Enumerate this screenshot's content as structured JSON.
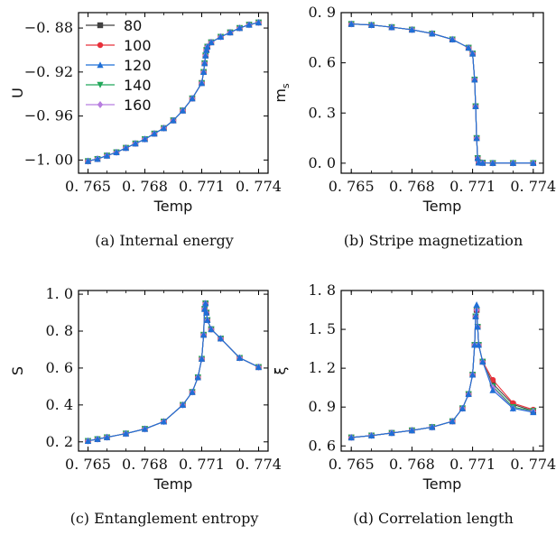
{
  "chart_data": [
    {
      "type": "line",
      "caption": "(a) Internal energy",
      "xlabel": "Temp",
      "ylabel": "U",
      "xlim": [
        0.7645,
        0.7745
      ],
      "ylim": [
        -1.012,
        -0.866
      ],
      "xticks": [
        0.765,
        0.768,
        0.771,
        0.774
      ],
      "xtick_labels": [
        "0. 765",
        "0. 768",
        "0. 771",
        "0. 774"
      ],
      "yticks": [
        -1.0,
        -0.96,
        -0.92,
        -0.88
      ],
      "ytick_labels": [
        "−1. 00",
        "−0. 96",
        "−0. 92",
        "−0. 88"
      ],
      "legend": {
        "placement": "top-left",
        "entries": [
          "80",
          "100",
          "120",
          "140",
          "160"
        ]
      },
      "x": [
        0.765,
        0.7655,
        0.766,
        0.7665,
        0.767,
        0.7675,
        0.768,
        0.7685,
        0.769,
        0.7695,
        0.77,
        0.7705,
        0.771,
        0.7711,
        0.77115,
        0.7712,
        0.77125,
        0.7713,
        0.7715,
        0.772,
        0.7725,
        0.773,
        0.7735,
        0.774
      ],
      "series": [
        {
          "name": "80",
          "values": [
            -1.001,
            -0.999,
            -0.996,
            -0.993,
            -0.989,
            -0.985,
            -0.981,
            -0.976,
            -0.971,
            -0.964,
            -0.955,
            -0.944,
            -0.93,
            -0.92,
            -0.912,
            -0.905,
            -0.9,
            -0.897,
            -0.893,
            -0.888,
            -0.884,
            -0.88,
            -0.877,
            -0.875
          ]
        },
        {
          "name": "100",
          "values": [
            -1.001,
            -0.999,
            -0.996,
            -0.993,
            -0.989,
            -0.985,
            -0.981,
            -0.976,
            -0.971,
            -0.964,
            -0.955,
            -0.944,
            -0.93,
            -0.92,
            -0.912,
            -0.905,
            -0.9,
            -0.897,
            -0.893,
            -0.888,
            -0.884,
            -0.88,
            -0.877,
            -0.875
          ]
        },
        {
          "name": "120",
          "values": [
            -1.001,
            -0.999,
            -0.996,
            -0.993,
            -0.989,
            -0.985,
            -0.981,
            -0.976,
            -0.971,
            -0.964,
            -0.955,
            -0.944,
            -0.93,
            -0.92,
            -0.912,
            -0.905,
            -0.9,
            -0.897,
            -0.893,
            -0.888,
            -0.884,
            -0.88,
            -0.877,
            -0.875
          ]
        },
        {
          "name": "140",
          "values": [
            -1.001,
            -0.999,
            -0.996,
            -0.993,
            -0.989,
            -0.985,
            -0.981,
            -0.976,
            -0.971,
            -0.964,
            -0.955,
            -0.944,
            -0.93,
            -0.92,
            -0.912,
            -0.905,
            -0.9,
            -0.897,
            -0.893,
            -0.888,
            -0.884,
            -0.88,
            -0.877,
            -0.875
          ]
        },
        {
          "name": "160",
          "values": [
            -1.001,
            -0.999,
            -0.996,
            -0.993,
            -0.989,
            -0.985,
            -0.981,
            -0.976,
            -0.971,
            -0.964,
            -0.955,
            -0.944,
            -0.93,
            -0.92,
            -0.912,
            -0.905,
            -0.9,
            -0.897,
            -0.893,
            -0.888,
            -0.884,
            -0.88,
            -0.877,
            -0.875
          ]
        }
      ]
    },
    {
      "type": "line",
      "caption": "(b) Stripe magnetization",
      "xlabel": "Temp",
      "ylabel": "m",
      "ylabel_sub": "s",
      "xlim": [
        0.7645,
        0.7745
      ],
      "ylim": [
        -0.06,
        0.9
      ],
      "xticks": [
        0.765,
        0.768,
        0.771,
        0.774
      ],
      "xtick_labels": [
        "0. 765",
        "0. 768",
        "0. 771",
        "0. 774"
      ],
      "yticks": [
        0.0,
        0.3,
        0.6,
        0.9
      ],
      "ytick_labels": [
        "0. 0",
        "0. 3",
        "0. 6",
        "0. 9"
      ],
      "x": [
        0.765,
        0.766,
        0.767,
        0.768,
        0.769,
        0.77,
        0.7708,
        0.771,
        0.7711,
        0.77115,
        0.7712,
        0.77125,
        0.7713,
        0.7715,
        0.772,
        0.773,
        0.774
      ],
      "series": [
        {
          "name": "80",
          "values": [
            0.832,
            0.826,
            0.813,
            0.798,
            0.775,
            0.74,
            0.69,
            0.655,
            0.5,
            0.34,
            0.15,
            0.03,
            0.004,
            0.002,
            0.001,
            0.001,
            0.001
          ]
        },
        {
          "name": "100",
          "values": [
            0.832,
            0.826,
            0.813,
            0.798,
            0.775,
            0.74,
            0.69,
            0.655,
            0.5,
            0.34,
            0.15,
            0.03,
            0.004,
            0.002,
            0.001,
            0.001,
            0.001
          ]
        },
        {
          "name": "120",
          "values": [
            0.832,
            0.826,
            0.813,
            0.798,
            0.775,
            0.74,
            0.69,
            0.655,
            0.5,
            0.34,
            0.15,
            0.03,
            0.004,
            0.002,
            0.001,
            0.001,
            0.001
          ]
        },
        {
          "name": "140",
          "values": [
            0.832,
            0.826,
            0.813,
            0.798,
            0.775,
            0.74,
            0.69,
            0.655,
            0.5,
            0.34,
            0.15,
            0.03,
            0.004,
            0.002,
            0.001,
            0.001,
            0.001
          ]
        },
        {
          "name": "160",
          "values": [
            0.832,
            0.826,
            0.813,
            0.798,
            0.775,
            0.74,
            0.69,
            0.655,
            0.5,
            0.34,
            0.15,
            0.03,
            0.004,
            0.002,
            0.001,
            0.001,
            0.001
          ]
        }
      ]
    },
    {
      "type": "line",
      "caption": "(c) Entanglement entropy",
      "xlabel": "Temp",
      "ylabel": "S",
      "xlim": [
        0.7645,
        0.7745
      ],
      "ylim": [
        0.15,
        1.02
      ],
      "xticks": [
        0.765,
        0.768,
        0.771,
        0.774
      ],
      "xtick_labels": [
        "0. 765",
        "0. 768",
        "0. 771",
        "0. 774"
      ],
      "yticks": [
        0.2,
        0.4,
        0.6,
        0.8,
        1.0
      ],
      "ytick_labels": [
        "0. 2",
        "0. 4",
        "0. 6",
        "0. 8",
        "1. 0"
      ],
      "x": [
        0.765,
        0.7655,
        0.766,
        0.767,
        0.768,
        0.769,
        0.77,
        0.7705,
        0.7708,
        0.771,
        0.7711,
        0.77115,
        0.7712,
        0.77125,
        0.7713,
        0.7715,
        0.772,
        0.773,
        0.774
      ],
      "series": [
        {
          "name": "80",
          "values": [
            0.205,
            0.215,
            0.225,
            0.245,
            0.27,
            0.31,
            0.4,
            0.47,
            0.55,
            0.65,
            0.78,
            0.92,
            0.95,
            0.9,
            0.86,
            0.81,
            0.76,
            0.655,
            0.605
          ]
        },
        {
          "name": "100",
          "values": [
            0.205,
            0.215,
            0.225,
            0.245,
            0.27,
            0.31,
            0.4,
            0.47,
            0.55,
            0.65,
            0.78,
            0.92,
            0.95,
            0.9,
            0.86,
            0.81,
            0.76,
            0.655,
            0.605
          ]
        },
        {
          "name": "120",
          "values": [
            0.205,
            0.215,
            0.225,
            0.245,
            0.27,
            0.31,
            0.4,
            0.47,
            0.55,
            0.65,
            0.78,
            0.92,
            0.95,
            0.9,
            0.86,
            0.81,
            0.76,
            0.655,
            0.605
          ]
        },
        {
          "name": "140",
          "values": [
            0.205,
            0.215,
            0.225,
            0.245,
            0.27,
            0.31,
            0.4,
            0.47,
            0.55,
            0.65,
            0.78,
            0.92,
            0.95,
            0.9,
            0.86,
            0.81,
            0.76,
            0.655,
            0.605
          ]
        },
        {
          "name": "160",
          "values": [
            0.205,
            0.215,
            0.225,
            0.245,
            0.27,
            0.31,
            0.4,
            0.47,
            0.55,
            0.65,
            0.78,
            0.92,
            0.95,
            0.9,
            0.86,
            0.81,
            0.76,
            0.655,
            0.605
          ]
        }
      ]
    },
    {
      "type": "line",
      "caption": "(d) Correlation length",
      "xlabel": "Temp",
      "ylabel": "ξ",
      "xlim": [
        0.7645,
        0.7745
      ],
      "ylim": [
        0.56,
        1.8
      ],
      "xticks": [
        0.765,
        0.768,
        0.771,
        0.774
      ],
      "xtick_labels": [
        "0. 765",
        "0. 768",
        "0. 771",
        "0. 774"
      ],
      "yticks": [
        0.6,
        0.9,
        1.2,
        1.5,
        1.8
      ],
      "ytick_labels": [
        "0. 6",
        "0. 9",
        "1. 2",
        "1. 5",
        "1. 8"
      ],
      "x": [
        0.765,
        0.766,
        0.767,
        0.768,
        0.769,
        0.77,
        0.7705,
        0.7708,
        0.771,
        0.7711,
        0.77115,
        0.7712,
        0.77125,
        0.7713,
        0.7715,
        0.772,
        0.773,
        0.774
      ],
      "series": [
        {
          "name": "80",
          "values": [
            0.665,
            0.68,
            0.7,
            0.72,
            0.745,
            0.79,
            0.89,
            1.0,
            1.15,
            1.38,
            1.6,
            1.65,
            1.52,
            1.38,
            1.25,
            1.08,
            0.92,
            0.87
          ]
        },
        {
          "name": "100",
          "values": [
            0.665,
            0.68,
            0.7,
            0.72,
            0.745,
            0.79,
            0.89,
            1.0,
            1.15,
            1.38,
            1.6,
            1.65,
            1.52,
            1.38,
            1.25,
            1.11,
            0.93,
            0.88
          ]
        },
        {
          "name": "120",
          "values": [
            0.665,
            0.68,
            0.7,
            0.72,
            0.745,
            0.79,
            0.89,
            1.0,
            1.15,
            1.38,
            1.6,
            1.69,
            1.52,
            1.38,
            1.25,
            1.03,
            0.89,
            0.86
          ]
        },
        {
          "name": "140",
          "values": [
            0.665,
            0.68,
            0.7,
            0.72,
            0.745,
            0.79,
            0.89,
            1.0,
            1.15,
            1.38,
            1.6,
            1.65,
            1.52,
            1.38,
            1.25,
            1.06,
            0.9,
            0.87
          ]
        },
        {
          "name": "160",
          "values": [
            0.665,
            0.68,
            0.7,
            0.72,
            0.745,
            0.79,
            0.89,
            1.0,
            1.15,
            1.38,
            1.6,
            1.65,
            1.52,
            1.38,
            1.25,
            1.05,
            0.89,
            0.865
          ]
        }
      ]
    }
  ],
  "style": {
    "series_colors": [
      "#404040",
      "#e8303a",
      "#1f6fd6",
      "#22a85a",
      "#b77de0"
    ],
    "series_markers": [
      "square",
      "circle",
      "triangle-up",
      "triangle-down",
      "diamond"
    ]
  }
}
